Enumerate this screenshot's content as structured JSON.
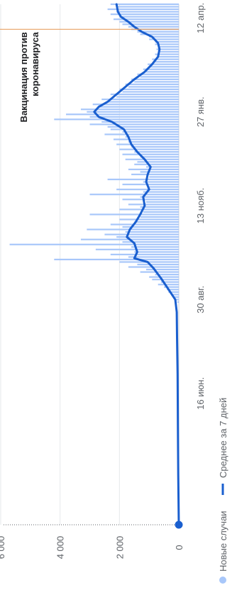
{
  "chart_data": {
    "type": "line",
    "orientation": "rotated-90-ccw",
    "y_ticks": [
      {
        "value": 6000,
        "label": "6 000"
      },
      {
        "value": 4000,
        "label": "4 000"
      },
      {
        "value": 2000,
        "label": "2 000"
      },
      {
        "value": 0,
        "label": "0"
      }
    ],
    "ylim": [
      0,
      6000
    ],
    "x_ticks": [
      {
        "day": 105,
        "label": "16 июн."
      },
      {
        "day": 180,
        "label": "30 авг."
      },
      {
        "day": 255,
        "label": "13 нояб."
      },
      {
        "day": 330,
        "label": "27 янв."
      },
      {
        "day": 405,
        "label": "12 апр."
      }
    ],
    "xlim": [
      0,
      416
    ],
    "grid": true,
    "legend_position": "bottom",
    "series": [
      {
        "name": "Новые случаи",
        "kind": "bar",
        "color": "#a8c7fa"
      },
      {
        "name": "Среднее за 7 дней",
        "kind": "line",
        "color": "#1a5fcf",
        "points": [
          [
            0,
            0
          ],
          [
            40,
            20
          ],
          [
            80,
            30
          ],
          [
            120,
            40
          ],
          [
            150,
            60
          ],
          [
            170,
            70
          ],
          [
            180,
            120
          ],
          [
            190,
            400
          ],
          [
            197,
            600
          ],
          [
            205,
            850
          ],
          [
            210,
            1050
          ],
          [
            213,
            1500
          ],
          [
            218,
            1400
          ],
          [
            225,
            1500
          ],
          [
            230,
            1750
          ],
          [
            236,
            1650
          ],
          [
            242,
            1450
          ],
          [
            248,
            1300
          ],
          [
            255,
            1150
          ],
          [
            262,
            1200
          ],
          [
            268,
            1000
          ],
          [
            274,
            1100
          ],
          [
            280,
            1050
          ],
          [
            286,
            950
          ],
          [
            292,
            1150
          ],
          [
            298,
            1400
          ],
          [
            304,
            1600
          ],
          [
            310,
            1700
          ],
          [
            316,
            1850
          ],
          [
            322,
            2250
          ],
          [
            326,
            2700
          ],
          [
            330,
            2850
          ],
          [
            334,
            2700
          ],
          [
            338,
            2400
          ],
          [
            344,
            2100
          ],
          [
            350,
            1800
          ],
          [
            356,
            1500
          ],
          [
            362,
            1150
          ],
          [
            368,
            900
          ],
          [
            374,
            700
          ],
          [
            380,
            650
          ],
          [
            385,
            700
          ],
          [
            390,
            900
          ],
          [
            394,
            1250
          ],
          [
            398,
            1500
          ],
          [
            402,
            1700
          ],
          [
            406,
            1950
          ],
          [
            410,
            2050
          ],
          [
            416,
            2100
          ]
        ]
      }
    ],
    "daily_cases": [
      [
        178,
        50
      ],
      [
        180,
        120
      ],
      [
        182,
        180
      ],
      [
        184,
        260
      ],
      [
        186,
        350
      ],
      [
        188,
        400
      ],
      [
        190,
        500
      ],
      [
        192,
        700
      ],
      [
        194,
        600
      ],
      [
        196,
        900
      ],
      [
        198,
        1000
      ],
      [
        200,
        800
      ],
      [
        202,
        1300
      ],
      [
        204,
        1100
      ],
      [
        206,
        1700
      ],
      [
        208,
        1400
      ],
      [
        210,
        2000
      ],
      [
        212,
        4200
      ],
      [
        214,
        1700
      ],
      [
        216,
        2300
      ],
      [
        218,
        1500
      ],
      [
        220,
        2800
      ],
      [
        222,
        1600
      ],
      [
        224,
        5700
      ],
      [
        226,
        1900
      ],
      [
        228,
        3300
      ],
      [
        230,
        2100
      ],
      [
        232,
        2500
      ],
      [
        234,
        1800
      ],
      [
        236,
        3100
      ],
      [
        238,
        1900
      ],
      [
        240,
        2300
      ],
      [
        242,
        1500
      ],
      [
        244,
        2000
      ],
      [
        246,
        1300
      ],
      [
        248,
        3000
      ],
      [
        250,
        1200
      ],
      [
        252,
        2000
      ],
      [
        254,
        1300
      ],
      [
        256,
        1700
      ],
      [
        258,
        1100
      ],
      [
        260,
        1900
      ],
      [
        262,
        1300
      ],
      [
        264,
        3000
      ],
      [
        266,
        1200
      ],
      [
        268,
        2100
      ],
      [
        270,
        1000
      ],
      [
        272,
        1900
      ],
      [
        274,
        1200
      ],
      [
        276,
        2400
      ],
      [
        278,
        1000
      ],
      [
        280,
        1600
      ],
      [
        282,
        1300
      ],
      [
        284,
        1700
      ],
      [
        286,
        1100
      ],
      [
        288,
        1500
      ],
      [
        290,
        1400
      ],
      [
        292,
        1800
      ],
      [
        294,
        1300
      ],
      [
        296,
        1900
      ],
      [
        298,
        1500
      ],
      [
        300,
        2000
      ],
      [
        302,
        1600
      ],
      [
        304,
        2100
      ],
      [
        306,
        1700
      ],
      [
        308,
        2200
      ],
      [
        310,
        1800
      ],
      [
        312,
        2500
      ],
      [
        314,
        1900
      ],
      [
        316,
        2300
      ],
      [
        318,
        2400
      ],
      [
        320,
        3000
      ],
      [
        322,
        2600
      ],
      [
        324,
        4200
      ],
      [
        326,
        3000
      ],
      [
        328,
        3800
      ],
      [
        330,
        3100
      ],
      [
        332,
        3300
      ],
      [
        334,
        2700
      ],
      [
        336,
        2900
      ],
      [
        338,
        2400
      ],
      [
        340,
        2600
      ],
      [
        342,
        2100
      ],
      [
        344,
        2300
      ],
      [
        346,
        1900
      ],
      [
        348,
        2000
      ],
      [
        350,
        1700
      ],
      [
        352,
        1800
      ],
      [
        354,
        1500
      ],
      [
        356,
        1600
      ],
      [
        358,
        1300
      ],
      [
        360,
        1400
      ],
      [
        362,
        1100
      ],
      [
        364,
        1200
      ],
      [
        366,
        950
      ],
      [
        368,
        1050
      ],
      [
        370,
        800
      ],
      [
        372,
        900
      ],
      [
        374,
        700
      ],
      [
        376,
        800
      ],
      [
        378,
        650
      ],
      [
        380,
        750
      ],
      [
        382,
        700
      ],
      [
        384,
        800
      ],
      [
        386,
        800
      ],
      [
        388,
        1000
      ],
      [
        390,
        1000
      ],
      [
        392,
        1300
      ],
      [
        394,
        1400
      ],
      [
        396,
        1600
      ],
      [
        398,
        1700
      ],
      [
        400,
        1900
      ],
      [
        402,
        2000
      ],
      [
        404,
        2200
      ],
      [
        406,
        2000
      ],
      [
        408,
        2300
      ],
      [
        410,
        2100
      ],
      [
        412,
        2400
      ],
      [
        414,
        2100
      ],
      [
        416,
        2300
      ]
    ],
    "annotations": [
      {
        "day": 396,
        "text_lines": [
          "Вакцинация против",
          "коронавируса"
        ]
      }
    ]
  }
}
